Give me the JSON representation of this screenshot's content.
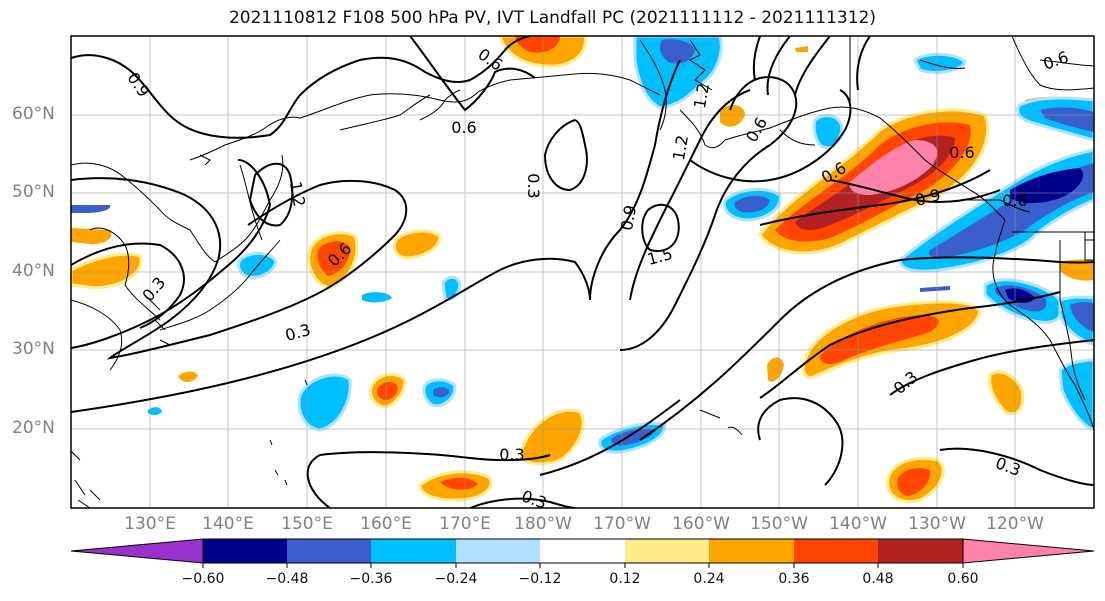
{
  "title": "2021110812 F108 500 hPa PV, IVT Landfall PC (2021111112 - 2021111312)",
  "lat_labels": [
    "60°N",
    "50°N",
    "40°N",
    "30°N",
    "20°N"
  ],
  "lon_labels": [
    "130°E",
    "140°E",
    "150°E",
    "160°E",
    "170°E",
    "180°W",
    "170°W",
    "160°W",
    "150°W",
    "140°W",
    "130°W",
    "120°W"
  ],
  "colorbar": {
    "colors": [
      "#9932CC",
      "#00008B",
      "#3A5FCD",
      "#00BFFF",
      "#B0E2FF",
      "#FFFFFF",
      "#FFFFFF",
      "#FFEC8B",
      "#FFA500",
      "#FF4500",
      "#B22222",
      "#FF82AB"
    ],
    "tick_labels": [
      "−0.60",
      "−0.48",
      "−0.36",
      "−0.24",
      "−0.12",
      "0.12",
      "0.24",
      "0.36",
      "0.48",
      "0.60"
    ]
  },
  "contour_labels": [
    "0.9",
    "0.6",
    "0.6",
    "0.3",
    "1.2",
    "0.3",
    "0.6",
    "0.3",
    "0.9",
    "1.5",
    "1.2",
    "1.2",
    "0.6",
    "0.6",
    "0.9",
    "0.6",
    "0.6",
    "0.3",
    "0.3",
    "0.3",
    "0.3",
    "0.6"
  ]
}
